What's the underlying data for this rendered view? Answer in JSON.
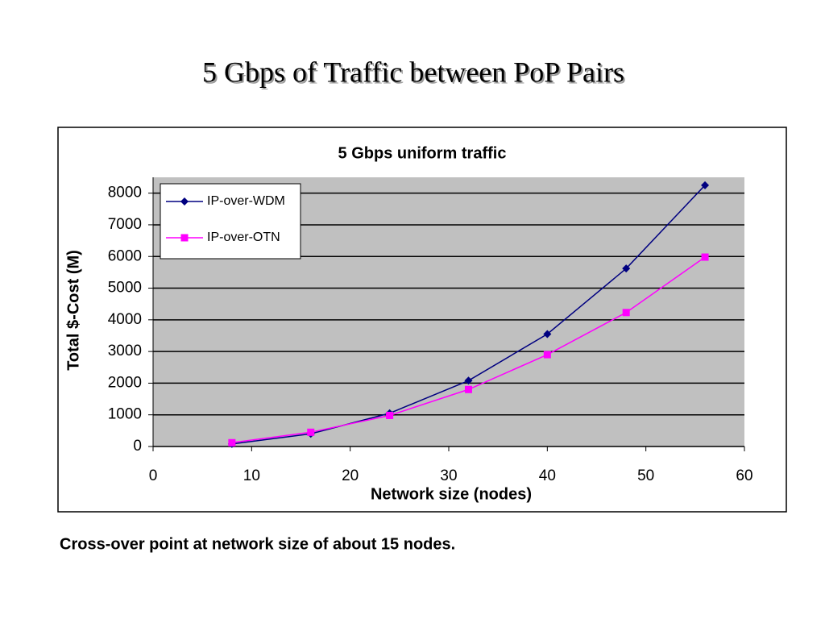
{
  "slide_title": "5 Gbps of Traffic between PoP Pairs",
  "caption": "Cross-over point at network size of about 15 nodes.",
  "chart_data": {
    "type": "line",
    "title": "5 Gbps uniform traffic",
    "x_label": "Network size (nodes)",
    "y_label": "Total $-Cost (M)",
    "x": [
      8,
      16,
      24,
      32,
      40,
      48,
      56
    ],
    "series": [
      {
        "name": "IP-over-WDM",
        "color": "#000080",
        "marker": "diamond",
        "values": [
          80,
          400,
          1050,
          2080,
          3550,
          5620,
          8250
        ]
      },
      {
        "name": "IP-over-OTN",
        "color": "#ff00ff",
        "marker": "square",
        "values": [
          120,
          450,
          980,
          1800,
          2900,
          4230,
          5980
        ]
      }
    ],
    "xlim": [
      0,
      60
    ],
    "xticks": [
      0,
      10,
      20,
      30,
      40,
      50,
      60
    ],
    "ylim": [
      0,
      8500
    ],
    "yticks": [
      0,
      1000,
      2000,
      3000,
      4000,
      5000,
      6000,
      7000,
      8000
    ],
    "grid": true,
    "legend": "top-left"
  }
}
